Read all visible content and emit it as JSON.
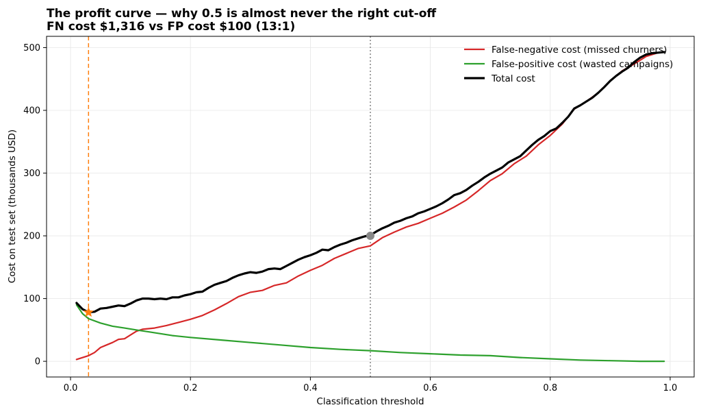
{
  "chart_data": {
    "type": "line",
    "title_line1": "The profit curve — why 0.5 is almost never the right cut-off",
    "title_line2": "FN cost $1,316 vs FP cost $100 (13:1)",
    "xlabel": "Classification threshold",
    "ylabel": "Cost on test set (thousands USD)",
    "xlim": [
      -0.04,
      1.04
    ],
    "ylim": [
      -25,
      518
    ],
    "xticks": [
      0.0,
      0.2,
      0.4,
      0.6,
      0.8,
      1.0
    ],
    "xtick_labels": [
      "0.0",
      "0.2",
      "0.4",
      "0.6",
      "0.8",
      "1.0"
    ],
    "yticks": [
      0,
      100,
      200,
      300,
      400,
      500
    ],
    "ytick_labels": [
      "0",
      "100",
      "200",
      "300",
      "400",
      "500"
    ],
    "grid": true,
    "legend_position": "top-right",
    "colors": {
      "fn": "#d62728",
      "fp": "#2ca02c",
      "total": "#000000",
      "optimal_line": "#ff7f0e",
      "default_line": "#808080"
    },
    "vlines": [
      {
        "x": 0.03,
        "style": "dashed",
        "color": "#ff7f0e"
      },
      {
        "x": 0.5,
        "style": "dotted",
        "color": "#808080"
      }
    ],
    "markers": [
      {
        "x": 0.03,
        "y": 78,
        "shape": "star",
        "color": "#ff7f0e"
      },
      {
        "x": 0.5,
        "y": 200,
        "shape": "circle",
        "color": "#888888"
      }
    ],
    "series": [
      {
        "name": "False-negative cost (missed churners)",
        "key": "fn",
        "points": [
          [
            0.01,
            3
          ],
          [
            0.03,
            9
          ],
          [
            0.04,
            14
          ],
          [
            0.05,
            22
          ],
          [
            0.06,
            26
          ],
          [
            0.07,
            30
          ],
          [
            0.08,
            35
          ],
          [
            0.09,
            36
          ],
          [
            0.1,
            42
          ],
          [
            0.11,
            48
          ],
          [
            0.12,
            51
          ],
          [
            0.14,
            53
          ],
          [
            0.16,
            57
          ],
          [
            0.18,
            62
          ],
          [
            0.2,
            67
          ],
          [
            0.22,
            73
          ],
          [
            0.24,
            82
          ],
          [
            0.26,
            92
          ],
          [
            0.28,
            103
          ],
          [
            0.3,
            110
          ],
          [
            0.32,
            113
          ],
          [
            0.34,
            121
          ],
          [
            0.36,
            125
          ],
          [
            0.38,
            136
          ],
          [
            0.4,
            145
          ],
          [
            0.42,
            153
          ],
          [
            0.44,
            164
          ],
          [
            0.46,
            172
          ],
          [
            0.48,
            180
          ],
          [
            0.5,
            184
          ],
          [
            0.52,
            197
          ],
          [
            0.54,
            206
          ],
          [
            0.56,
            214
          ],
          [
            0.58,
            220
          ],
          [
            0.6,
            228
          ],
          [
            0.62,
            236
          ],
          [
            0.64,
            246
          ],
          [
            0.66,
            257
          ],
          [
            0.68,
            272
          ],
          [
            0.7,
            288
          ],
          [
            0.72,
            299
          ],
          [
            0.74,
            315
          ],
          [
            0.76,
            327
          ],
          [
            0.78,
            345
          ],
          [
            0.8,
            360
          ],
          [
            0.82,
            378
          ],
          [
            0.84,
            402
          ],
          [
            0.86,
            414
          ],
          [
            0.88,
            428
          ],
          [
            0.9,
            447
          ],
          [
            0.92,
            463
          ],
          [
            0.94,
            474
          ],
          [
            0.96,
            486
          ],
          [
            0.98,
            492
          ],
          [
            0.99,
            493
          ]
        ]
      },
      {
        "name": "False-positive cost (wasted campaigns)",
        "key": "fp",
        "points": [
          [
            0.01,
            90
          ],
          [
            0.02,
            76
          ],
          [
            0.03,
            68
          ],
          [
            0.05,
            61
          ],
          [
            0.07,
            56
          ],
          [
            0.09,
            53
          ],
          [
            0.11,
            50
          ],
          [
            0.13,
            47
          ],
          [
            0.15,
            44
          ],
          [
            0.17,
            41
          ],
          [
            0.2,
            38
          ],
          [
            0.25,
            34
          ],
          [
            0.3,
            30
          ],
          [
            0.35,
            26
          ],
          [
            0.4,
            22
          ],
          [
            0.45,
            19
          ],
          [
            0.5,
            17
          ],
          [
            0.55,
            14
          ],
          [
            0.6,
            12
          ],
          [
            0.65,
            10
          ],
          [
            0.7,
            9
          ],
          [
            0.75,
            6
          ],
          [
            0.8,
            4
          ],
          [
            0.85,
            2
          ],
          [
            0.9,
            1
          ],
          [
            0.95,
            0
          ],
          [
            0.99,
            0
          ]
        ]
      },
      {
        "name": "Total cost",
        "key": "total",
        "points": [
          [
            0.01,
            93
          ],
          [
            0.02,
            83
          ],
          [
            0.03,
            78
          ],
          [
            0.04,
            79
          ],
          [
            0.05,
            84
          ],
          [
            0.06,
            85
          ],
          [
            0.07,
            87
          ],
          [
            0.08,
            89
          ],
          [
            0.09,
            88
          ],
          [
            0.1,
            92
          ],
          [
            0.11,
            97
          ],
          [
            0.12,
            100
          ],
          [
            0.13,
            100
          ],
          [
            0.14,
            99
          ],
          [
            0.15,
            100
          ],
          [
            0.16,
            99
          ],
          [
            0.17,
            102
          ],
          [
            0.18,
            102
          ],
          [
            0.19,
            105
          ],
          [
            0.2,
            107
          ],
          [
            0.21,
            110
          ],
          [
            0.22,
            111
          ],
          [
            0.23,
            117
          ],
          [
            0.24,
            122
          ],
          [
            0.25,
            125
          ],
          [
            0.26,
            128
          ],
          [
            0.27,
            133
          ],
          [
            0.28,
            137
          ],
          [
            0.29,
            140
          ],
          [
            0.3,
            142
          ],
          [
            0.31,
            141
          ],
          [
            0.32,
            143
          ],
          [
            0.33,
            147
          ],
          [
            0.34,
            148
          ],
          [
            0.35,
            147
          ],
          [
            0.36,
            152
          ],
          [
            0.37,
            157
          ],
          [
            0.38,
            162
          ],
          [
            0.39,
            166
          ],
          [
            0.4,
            169
          ],
          [
            0.41,
            173
          ],
          [
            0.42,
            178
          ],
          [
            0.43,
            177
          ],
          [
            0.44,
            182
          ],
          [
            0.45,
            186
          ],
          [
            0.46,
            189
          ],
          [
            0.47,
            193
          ],
          [
            0.48,
            196
          ],
          [
            0.49,
            199
          ],
          [
            0.5,
            201
          ],
          [
            0.51,
            207
          ],
          [
            0.52,
            212
          ],
          [
            0.53,
            216
          ],
          [
            0.54,
            221
          ],
          [
            0.55,
            224
          ],
          [
            0.56,
            228
          ],
          [
            0.57,
            231
          ],
          [
            0.58,
            236
          ],
          [
            0.59,
            239
          ],
          [
            0.6,
            243
          ],
          [
            0.61,
            247
          ],
          [
            0.62,
            252
          ],
          [
            0.63,
            258
          ],
          [
            0.64,
            265
          ],
          [
            0.65,
            268
          ],
          [
            0.66,
            273
          ],
          [
            0.67,
            280
          ],
          [
            0.68,
            286
          ],
          [
            0.69,
            293
          ],
          [
            0.7,
            299
          ],
          [
            0.71,
            304
          ],
          [
            0.72,
            309
          ],
          [
            0.73,
            317
          ],
          [
            0.74,
            322
          ],
          [
            0.75,
            327
          ],
          [
            0.76,
            336
          ],
          [
            0.77,
            345
          ],
          [
            0.78,
            353
          ],
          [
            0.79,
            359
          ],
          [
            0.8,
            367
          ],
          [
            0.81,
            371
          ],
          [
            0.82,
            380
          ],
          [
            0.83,
            390
          ],
          [
            0.84,
            403
          ],
          [
            0.85,
            408
          ],
          [
            0.86,
            414
          ],
          [
            0.87,
            420
          ],
          [
            0.88,
            428
          ],
          [
            0.89,
            437
          ],
          [
            0.9,
            447
          ],
          [
            0.91,
            455
          ],
          [
            0.92,
            462
          ],
          [
            0.93,
            468
          ],
          [
            0.94,
            477
          ],
          [
            0.95,
            484
          ],
          [
            0.96,
            489
          ],
          [
            0.97,
            491
          ],
          [
            0.98,
            492
          ],
          [
            0.99,
            493
          ]
        ]
      }
    ]
  }
}
